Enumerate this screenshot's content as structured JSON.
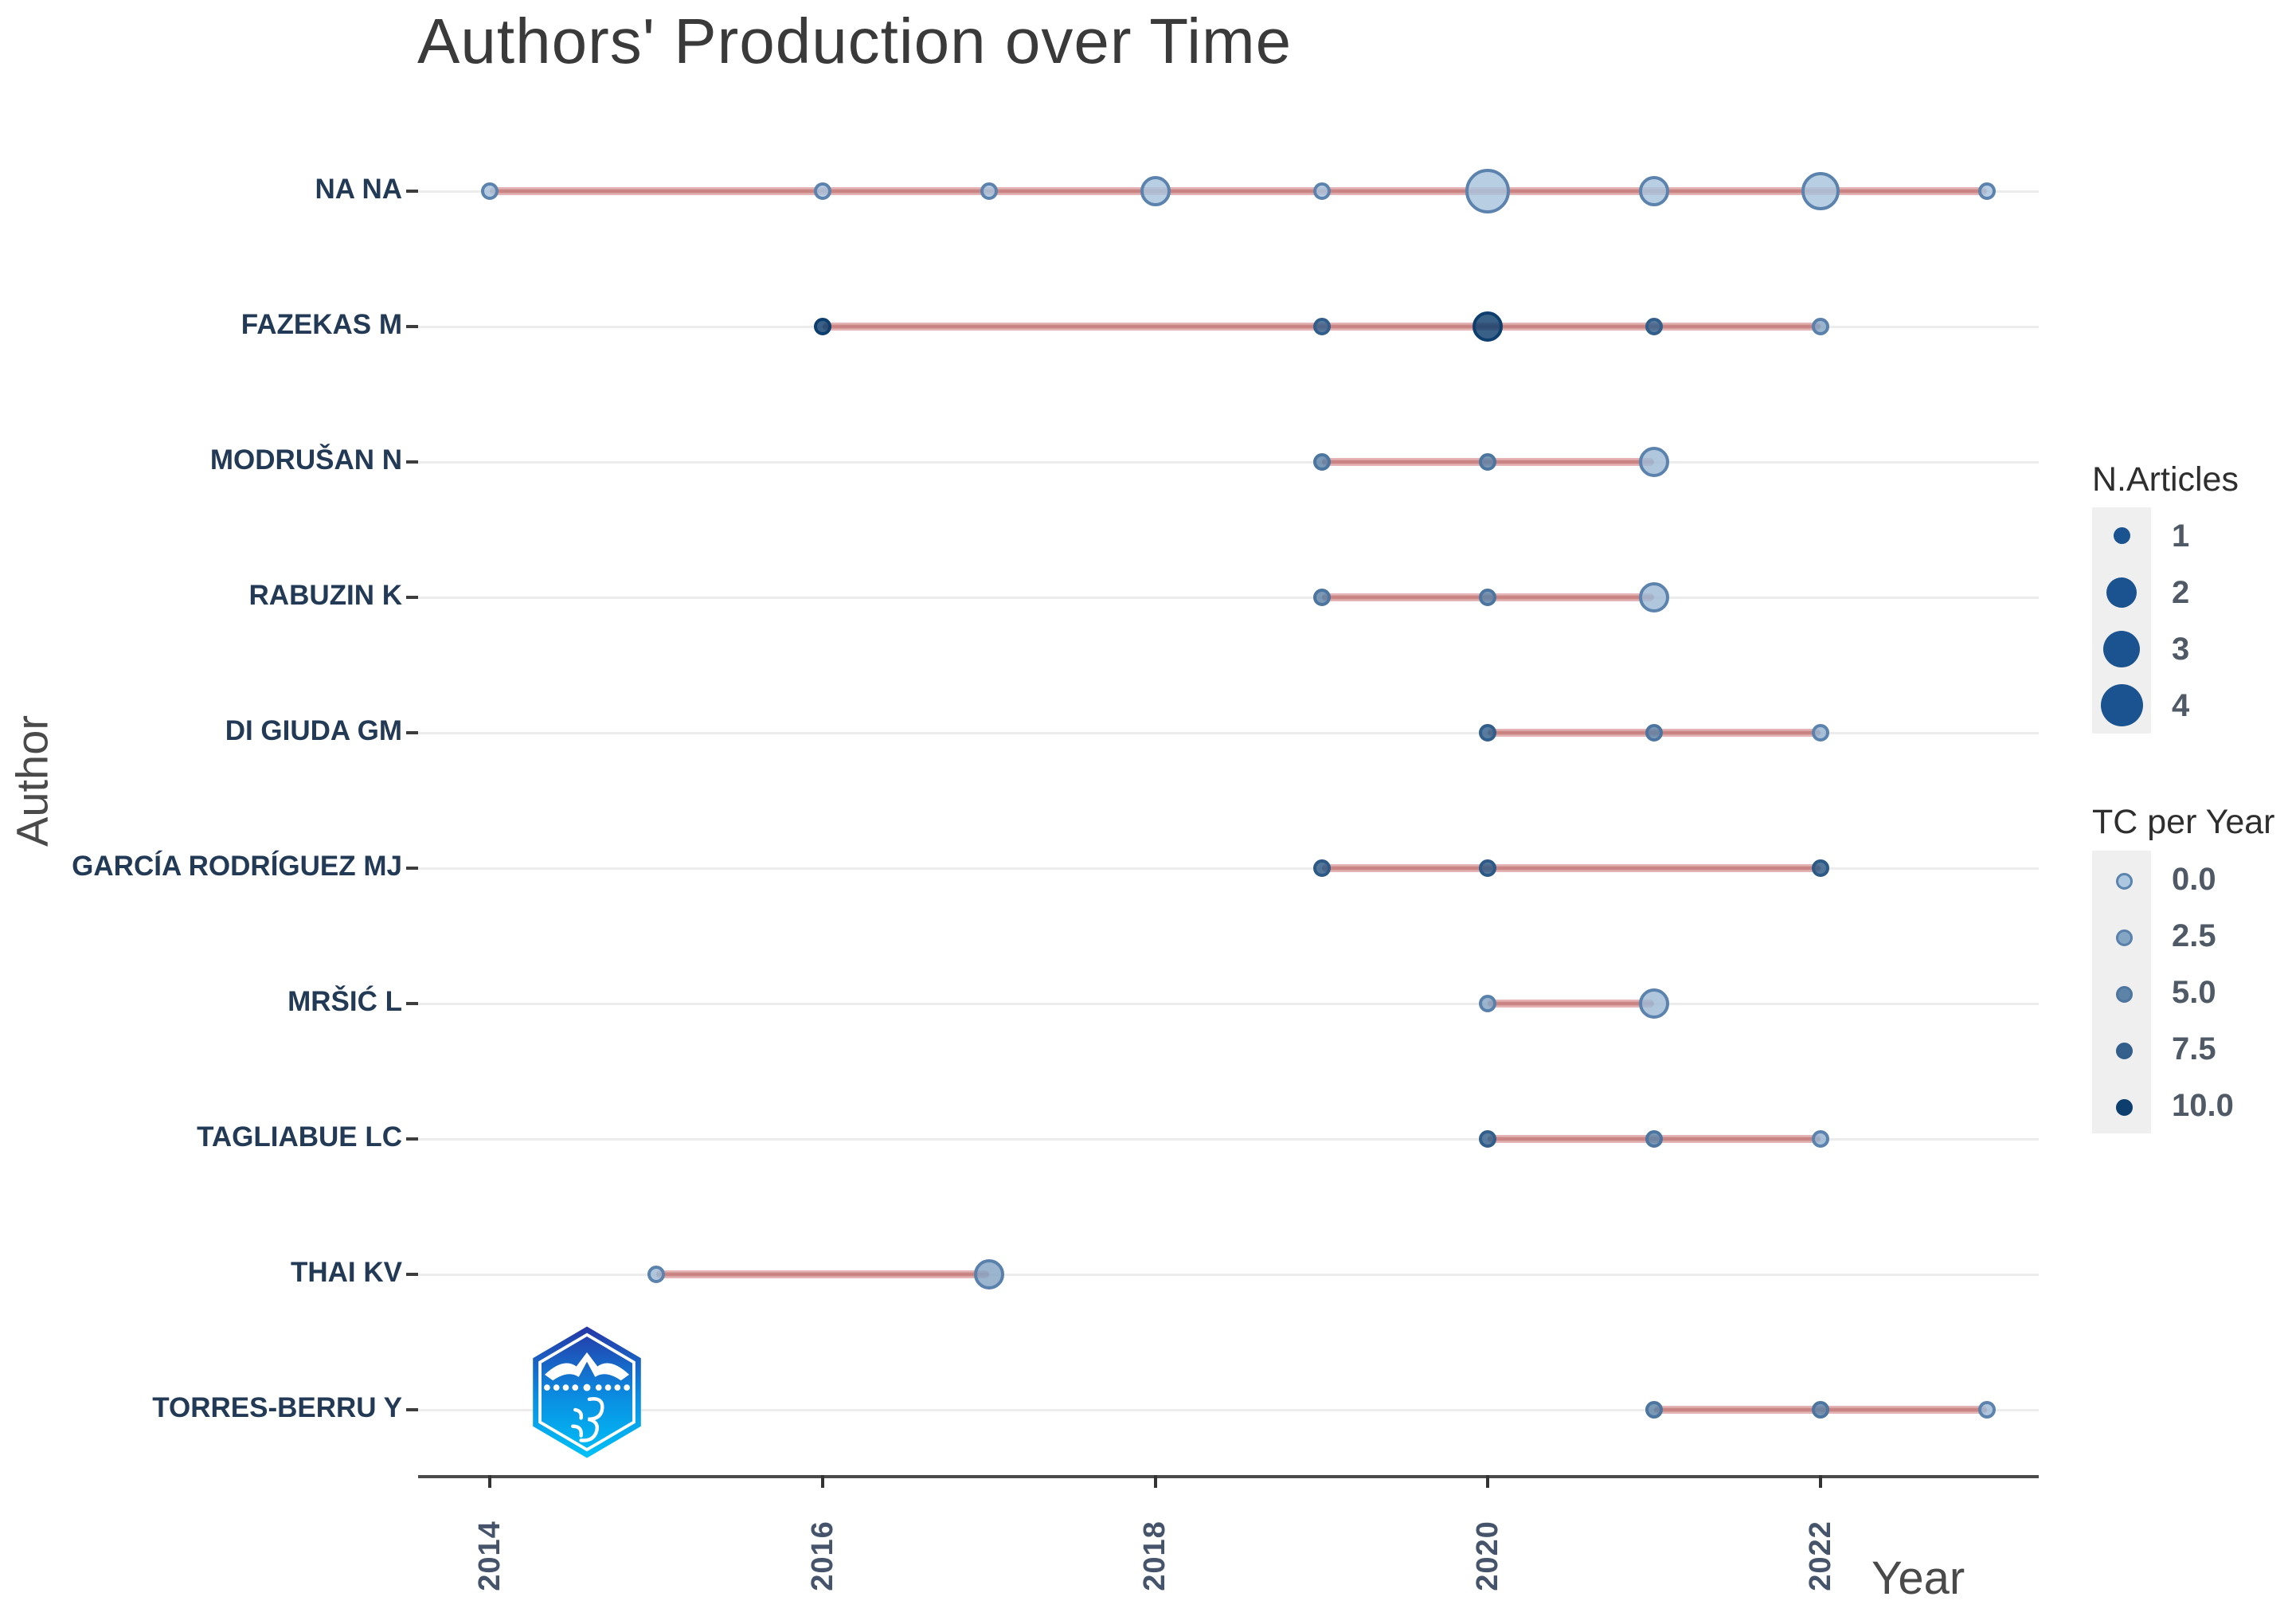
{
  "title": "Authors' Production over Time",
  "x_axis": {
    "label": "Year",
    "ticks": [
      "2014",
      "2016",
      "2018",
      "2020",
      "2022"
    ],
    "tick_years": [
      2014,
      2016,
      2018,
      2020,
      2022
    ]
  },
  "y_axis": {
    "label": "Author"
  },
  "legend": {
    "size_title": "N.Articles",
    "size_items": [
      {
        "label": "1",
        "n": 1
      },
      {
        "label": "2",
        "n": 2
      },
      {
        "label": "3",
        "n": 3
      },
      {
        "label": "4",
        "n": 4
      }
    ],
    "color_title": "TC per Year",
    "color_items": [
      {
        "label": "0.0",
        "tc": 0.0
      },
      {
        "label": "2.5",
        "tc": 2.5
      },
      {
        "label": "5.0",
        "tc": 5.0
      },
      {
        "label": "7.5",
        "tc": 7.5
      },
      {
        "label": "10.0",
        "tc": 10.0
      }
    ]
  },
  "colors": {
    "tc_low": "#ADC7E0",
    "tc_high": "#0D3E6E",
    "legend_circle": "#1B5390",
    "trend_line": "#C98383",
    "grid": "#ECECEC",
    "axis": "#4B4B4B",
    "author_label": "#223A55",
    "logo_top": "#2736A6",
    "logo_bottom": "#00C2F8"
  },
  "watermark": "hexagon-badge-logo",
  "chart_data": {
    "type": "scatter",
    "title": "Authors' Production over Time",
    "xlabel": "Year",
    "ylabel": "Author",
    "x_range": [
      2013.5,
      2023.4
    ],
    "grid": "horizontal-per-author",
    "legend_position": "right",
    "bubble_size_meaning": "N.Articles",
    "bubble_color_meaning": "TC per Year (darker = higher)",
    "series": [
      {
        "author": "NA NA",
        "line_span": [
          2014,
          2023
        ],
        "points": [
          {
            "year": 2014,
            "n_articles": 1,
            "tc_per_year": 0.5
          },
          {
            "year": 2016,
            "n_articles": 1,
            "tc_per_year": 0.3
          },
          {
            "year": 2017,
            "n_articles": 1,
            "tc_per_year": 0.3
          },
          {
            "year": 2018,
            "n_articles": 2,
            "tc_per_year": 0.3
          },
          {
            "year": 2019,
            "n_articles": 1,
            "tc_per_year": 0.3
          },
          {
            "year": 2020,
            "n_articles": 4,
            "tc_per_year": 0.3
          },
          {
            "year": 2021,
            "n_articles": 2,
            "tc_per_year": 0.3
          },
          {
            "year": 2022,
            "n_articles": 3,
            "tc_per_year": 0.3
          },
          {
            "year": 2023,
            "n_articles": 1,
            "tc_per_year": 0.3
          }
        ]
      },
      {
        "author": "FAZEKAS M",
        "line_span": [
          2016,
          2022
        ],
        "points": [
          {
            "year": 2016,
            "n_articles": 1,
            "tc_per_year": 10
          },
          {
            "year": 2019,
            "n_articles": 1,
            "tc_per_year": 7.5
          },
          {
            "year": 2020,
            "n_articles": 2,
            "tc_per_year": 10
          },
          {
            "year": 2021,
            "n_articles": 1,
            "tc_per_year": 7.5
          },
          {
            "year": 2022,
            "n_articles": 1,
            "tc_per_year": 2.5
          }
        ]
      },
      {
        "author": "MODRUŠAN N",
        "line_span": [
          2019,
          2021
        ],
        "points": [
          {
            "year": 2019,
            "n_articles": 1,
            "tc_per_year": 5
          },
          {
            "year": 2020,
            "n_articles": 1,
            "tc_per_year": 5
          },
          {
            "year": 2021,
            "n_articles": 2,
            "tc_per_year": 1
          }
        ]
      },
      {
        "author": "RABUZIN K",
        "line_span": [
          2019,
          2021
        ],
        "points": [
          {
            "year": 2019,
            "n_articles": 1,
            "tc_per_year": 5
          },
          {
            "year": 2020,
            "n_articles": 1,
            "tc_per_year": 5
          },
          {
            "year": 2021,
            "n_articles": 2,
            "tc_per_year": 1
          }
        ]
      },
      {
        "author": "DI GIUDA GM",
        "line_span": [
          2020,
          2022
        ],
        "points": [
          {
            "year": 2020,
            "n_articles": 1,
            "tc_per_year": 7.5
          },
          {
            "year": 2021,
            "n_articles": 1,
            "tc_per_year": 5
          },
          {
            "year": 2022,
            "n_articles": 1,
            "tc_per_year": 1.5
          }
        ]
      },
      {
        "author": "GARCÍA RODRÍGUEZ MJ",
        "line_span": [
          2019,
          2022
        ],
        "points": [
          {
            "year": 2019,
            "n_articles": 1,
            "tc_per_year": 8
          },
          {
            "year": 2020,
            "n_articles": 1,
            "tc_per_year": 8
          },
          {
            "year": 2022,
            "n_articles": 1,
            "tc_per_year": 8
          }
        ]
      },
      {
        "author": "MRŠIĆ L",
        "line_span": [
          2020,
          2021
        ],
        "points": [
          {
            "year": 2020,
            "n_articles": 1,
            "tc_per_year": 2.5
          },
          {
            "year": 2021,
            "n_articles": 2,
            "tc_per_year": 1
          }
        ]
      },
      {
        "author": "TAGLIABUE LC",
        "line_span": [
          2020,
          2022
        ],
        "points": [
          {
            "year": 2020,
            "n_articles": 1,
            "tc_per_year": 7.5
          },
          {
            "year": 2021,
            "n_articles": 1,
            "tc_per_year": 5
          },
          {
            "year": 2022,
            "n_articles": 1,
            "tc_per_year": 1.5
          }
        ]
      },
      {
        "author": "THAI KV",
        "line_span": [
          2015,
          2017
        ],
        "points": [
          {
            "year": 2015,
            "n_articles": 1,
            "tc_per_year": 1
          },
          {
            "year": 2017,
            "n_articles": 2,
            "tc_per_year": 2.5
          }
        ]
      },
      {
        "author": "TORRES-BERRU Y",
        "line_span": [
          2021,
          2023
        ],
        "points": [
          {
            "year": 2021,
            "n_articles": 1,
            "tc_per_year": 5
          },
          {
            "year": 2022,
            "n_articles": 1,
            "tc_per_year": 5
          },
          {
            "year": 2023,
            "n_articles": 1,
            "tc_per_year": 1
          }
        ]
      }
    ]
  }
}
